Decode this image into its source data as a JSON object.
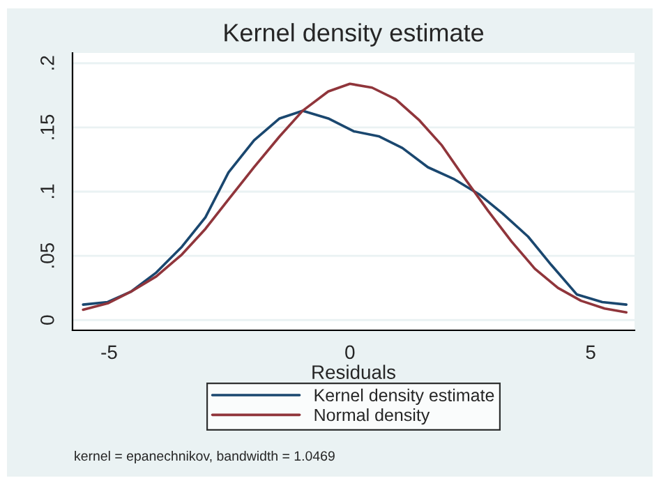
{
  "chart_data": {
    "type": "line",
    "title": "Kernel density estimate",
    "xlabel": "Residuals",
    "xlim": [
      -5.76,
      5.91
    ],
    "xticks": [
      {
        "value": -5,
        "label": "-5"
      },
      0,
      5
    ],
    "ylim": [
      -0.008,
      0.208
    ],
    "yticks": [
      {
        "value": 0,
        "label": "0"
      },
      {
        "value": 0.05,
        "label": ".05"
      },
      {
        "value": 0.1,
        "label": ".1"
      },
      {
        "value": 0.15,
        "label": ".15"
      },
      {
        "value": 0.2,
        "label": ".2"
      }
    ],
    "grid": "y",
    "legend": "bottom",
    "marker": "none",
    "line_style": "solid",
    "series": [
      {
        "name": "Kernel density estimate",
        "color": "#1a476f",
        "x": [
          -5.54,
          -5.03,
          -4.55,
          -4.02,
          -3.49,
          -3.0,
          -2.52,
          -1.99,
          -1.46,
          -0.98,
          -0.45,
          0.08,
          0.61,
          1.09,
          1.62,
          2.15,
          2.68,
          3.17,
          3.7,
          4.18,
          4.71,
          5.24,
          5.74
        ],
        "values": [
          0.012,
          0.014,
          0.022,
          0.037,
          0.057,
          0.08,
          0.115,
          0.14,
          0.157,
          0.163,
          0.157,
          0.147,
          0.143,
          0.134,
          0.119,
          0.11,
          0.098,
          0.083,
          0.065,
          0.043,
          0.02,
          0.014,
          0.012
        ]
      },
      {
        "name": "Normal density",
        "color": "#90353b",
        "x": [
          -5.54,
          -5.03,
          -4.55,
          -4.02,
          -3.49,
          -3.0,
          -2.52,
          -1.99,
          -1.46,
          -0.98,
          -0.45,
          0,
          0.46,
          0.95,
          1.43,
          1.91,
          2.39,
          2.87,
          3.36,
          3.84,
          4.32,
          4.8,
          5.29,
          5.74
        ],
        "values": [
          0.008,
          0.013,
          0.022,
          0.034,
          0.051,
          0.071,
          0.094,
          0.119,
          0.143,
          0.163,
          0.178,
          0.184,
          0.181,
          0.172,
          0.156,
          0.136,
          0.11,
          0.085,
          0.061,
          0.04,
          0.025,
          0.015,
          0.009,
          0.006
        ]
      }
    ],
    "annotations": [
      "kernel = epanechnikov, bandwidth = 1.0469"
    ]
  }
}
